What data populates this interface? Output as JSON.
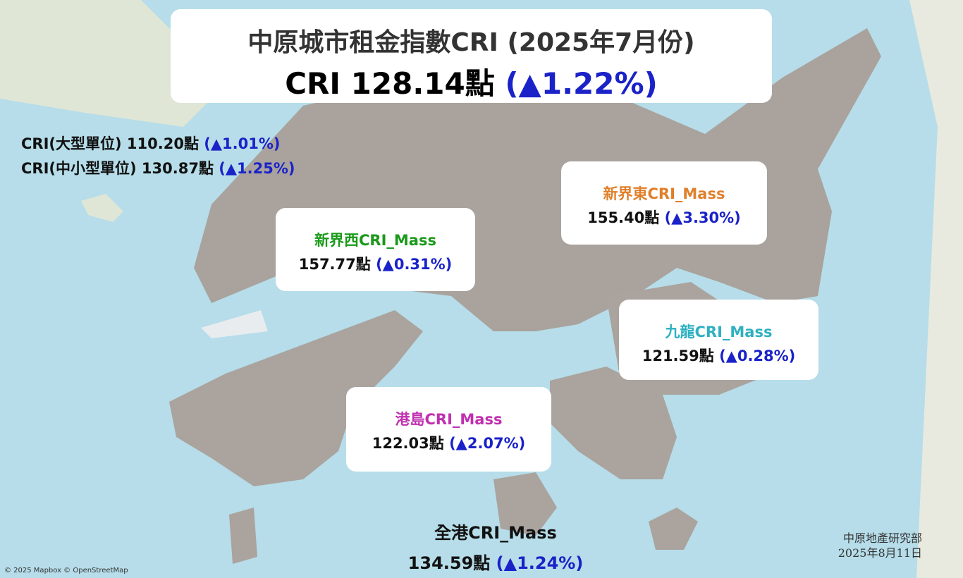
{
  "header": {
    "title": "中原城市租金指數CRI (2025年7月份)",
    "index": "CRI 128.14點",
    "change": "(▲1.22%)"
  },
  "side": [
    {
      "label": "CRI(大型單位)",
      "index": "110.20點",
      "change": "(▲1.01%)"
    },
    {
      "label": "CRI(中小型單位)",
      "index": "130.87點",
      "change": "(▲1.25%)"
    }
  ],
  "regions": [
    {
      "name": "新界東CRI_Mass",
      "index": "155.40點",
      "change": "(▲3.30%)"
    },
    {
      "name": "新界西CRI_Mass",
      "index": "157.77點",
      "change": "(▲0.31%)"
    },
    {
      "name": "九龍CRI_Mass",
      "index": "121.59點",
      "change": "(▲0.28%)"
    },
    {
      "name": "港島CRI_Mass",
      "index": "122.03點",
      "change": "(▲2.07%)"
    }
  ],
  "overall": {
    "name": "全港CRI_Mass",
    "index": "134.59點",
    "change": "(▲1.24%)"
  },
  "footer": {
    "source": "中原地產研究部",
    "date": "2025年8月11日",
    "attribution": "© 2025 Mapbox © OpenStreetMap"
  }
}
